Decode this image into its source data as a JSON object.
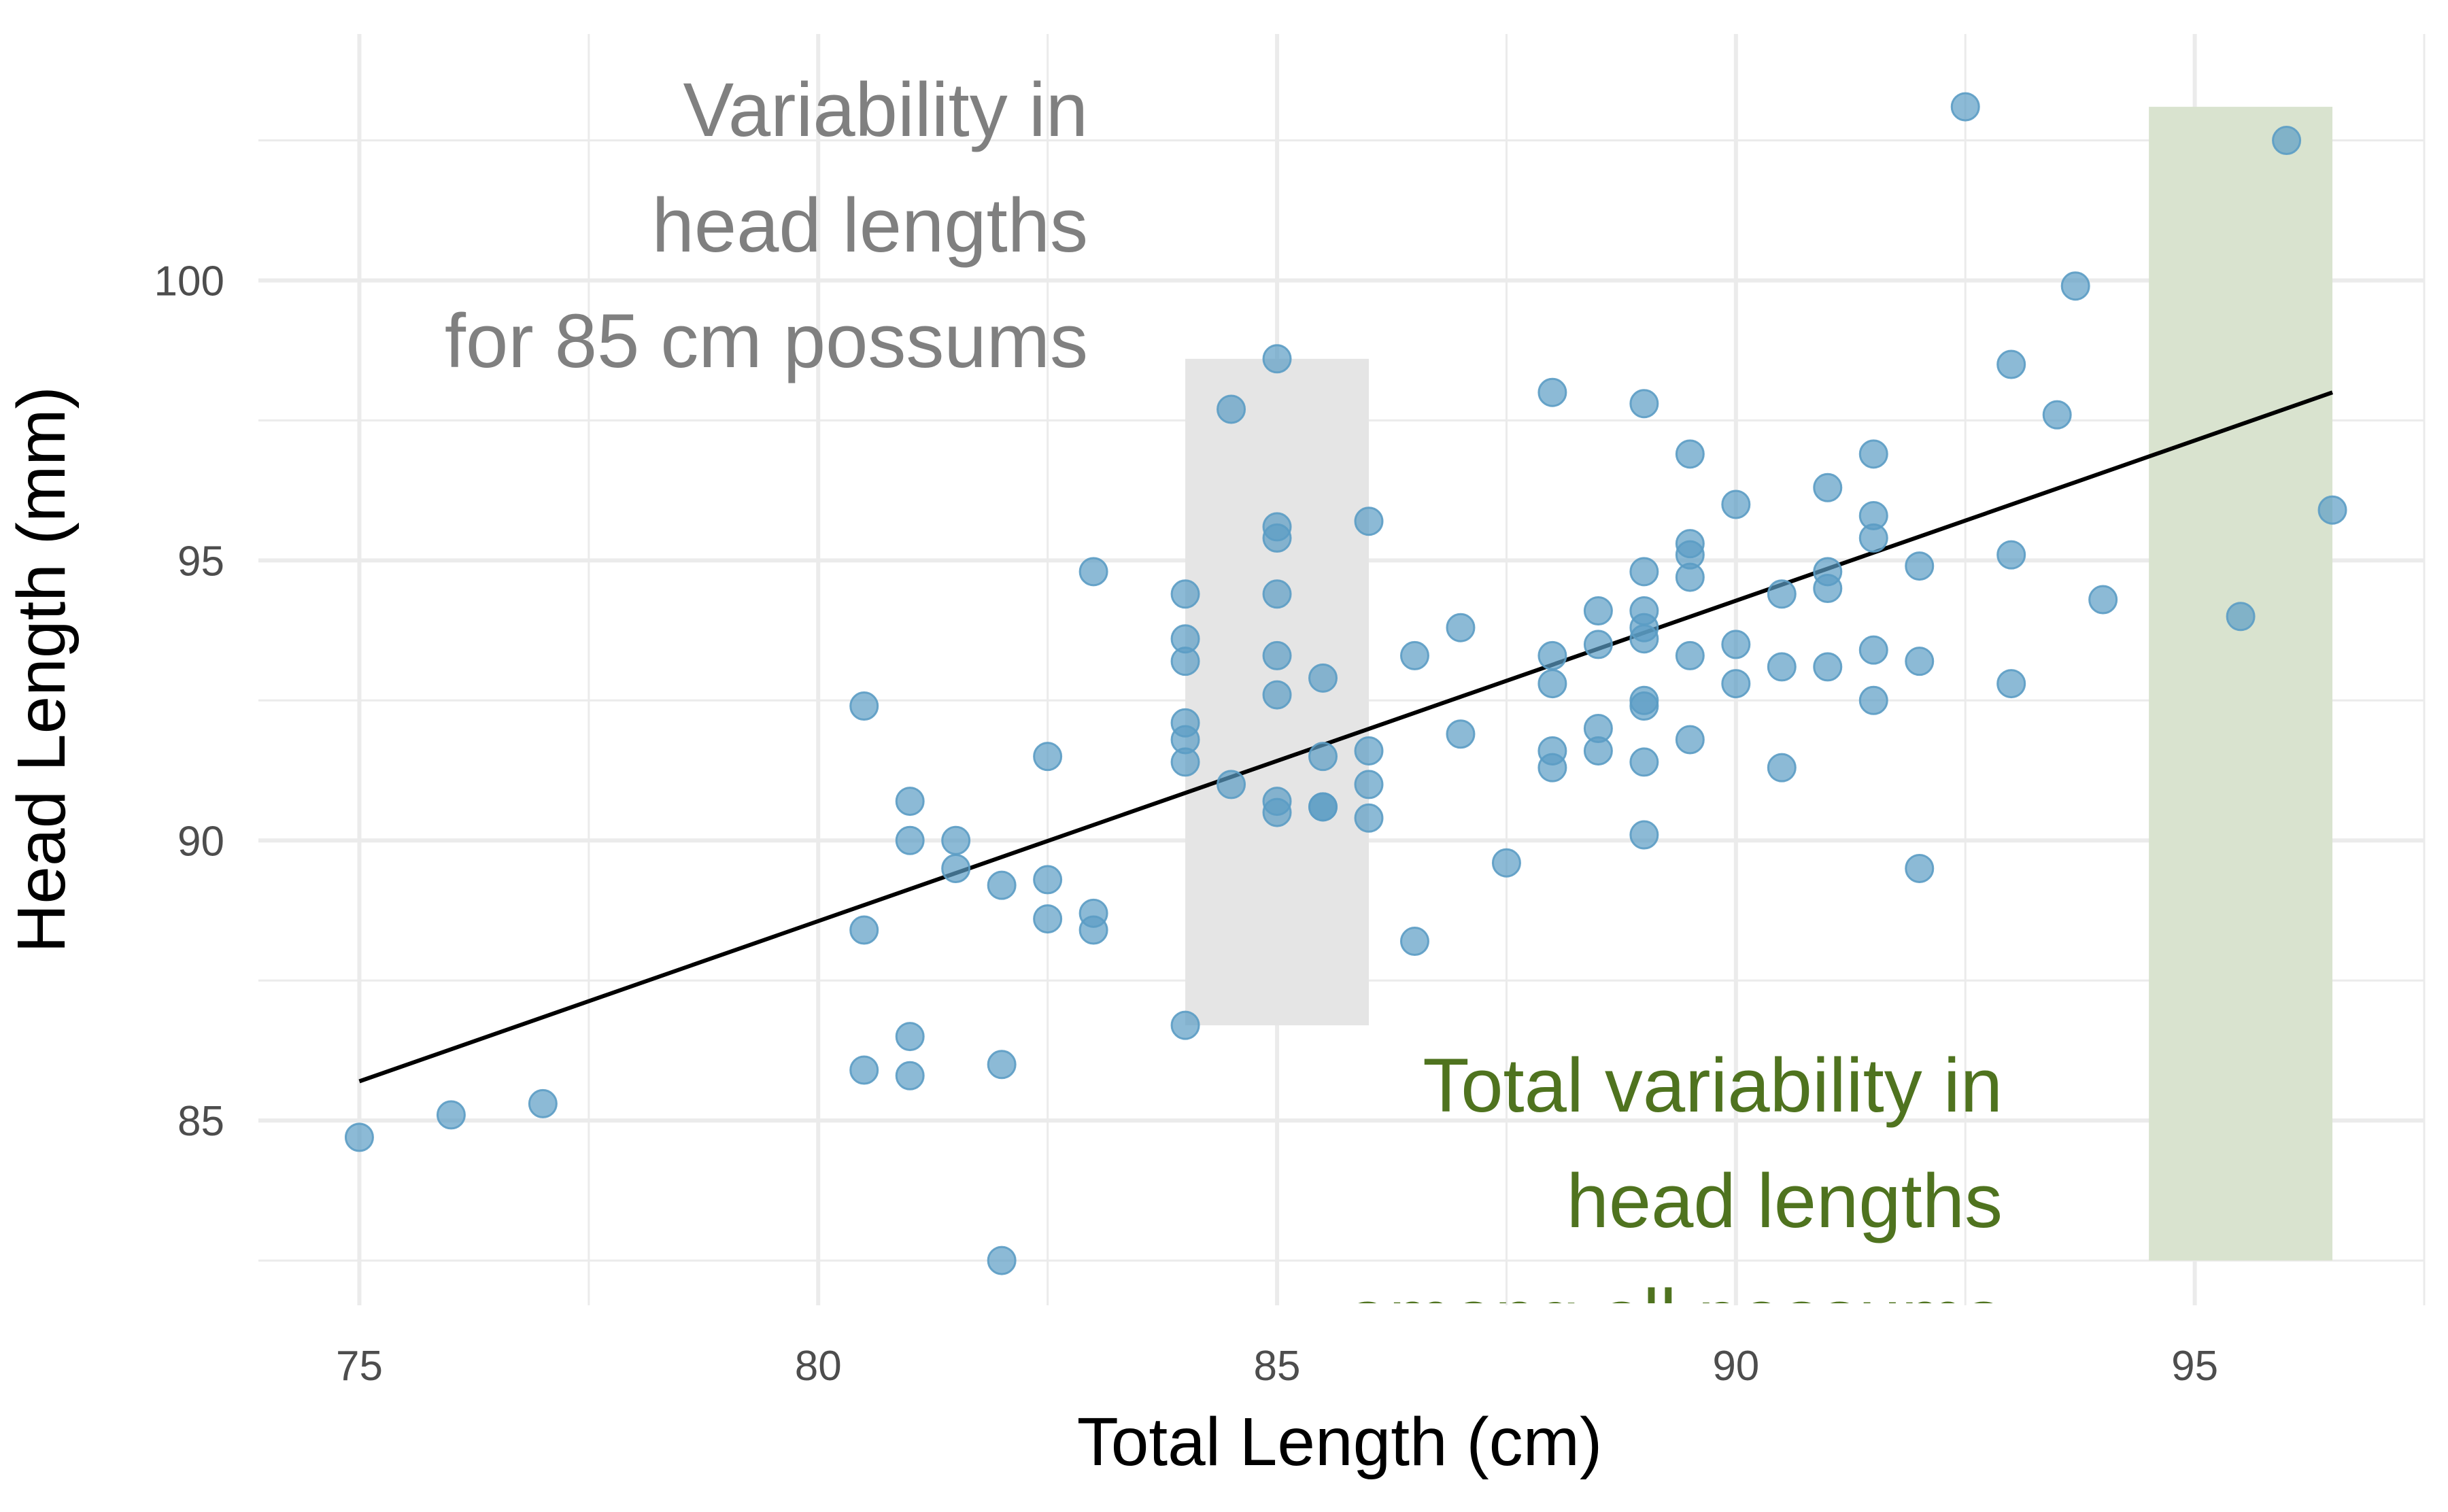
{
  "chart_data": {
    "type": "scatter",
    "xlabel": "Total Length (cm)",
    "ylabel": "Head Length (mm)",
    "xlim": [
      73.9,
      97.5
    ],
    "ylim": [
      81.7,
      104.4
    ],
    "x_ticks": [
      75,
      80,
      85,
      90,
      95
    ],
    "y_ticks": [
      85,
      90,
      95,
      100
    ],
    "x_minor": [
      77.5,
      82.5,
      87.5,
      92.5,
      97.5
    ],
    "y_minor": [
      82.5,
      87.5,
      92.5,
      97.5,
      102.5
    ],
    "grid": true,
    "point_color": "#5b9cc4",
    "line_color": "#000000",
    "regression_line": {
      "x": [
        75,
        96.5
      ],
      "y": [
        85.7,
        98.0
      ]
    },
    "points": [
      [
        75,
        84.7
      ],
      [
        76,
        85.1
      ],
      [
        77,
        85.3
      ],
      [
        80.5,
        92.4
      ],
      [
        80.5,
        88.4
      ],
      [
        80.5,
        85.9
      ],
      [
        81,
        90.7
      ],
      [
        81,
        90.0
      ],
      [
        81,
        86.5
      ],
      [
        81,
        85.8
      ],
      [
        81.5,
        90.0
      ],
      [
        81.5,
        89.5
      ],
      [
        82,
        89.2
      ],
      [
        82,
        86.0
      ],
      [
        82,
        82.5
      ],
      [
        82.5,
        91.5
      ],
      [
        82.5,
        89.3
      ],
      [
        82.5,
        88.6
      ],
      [
        83,
        94.8
      ],
      [
        83,
        88.7
      ],
      [
        83,
        88.4
      ],
      [
        84,
        94.4
      ],
      [
        84,
        93.6
      ],
      [
        84,
        93.2
      ],
      [
        84,
        92.1
      ],
      [
        84,
        91.8
      ],
      [
        84,
        91.4
      ],
      [
        84,
        86.7
      ],
      [
        84.5,
        97.7
      ],
      [
        84.5,
        91.0
      ],
      [
        85,
        98.6
      ],
      [
        85,
        95.6
      ],
      [
        85,
        95.4
      ],
      [
        85,
        94.4
      ],
      [
        85,
        93.3
      ],
      [
        85,
        92.6
      ],
      [
        85,
        90.7
      ],
      [
        85,
        90.5
      ],
      [
        85.5,
        92.9
      ],
      [
        85.5,
        91.5
      ],
      [
        85.5,
        90.6
      ],
      [
        85.5,
        90.6
      ],
      [
        86,
        95.7
      ],
      [
        86,
        91.6
      ],
      [
        86,
        91.0
      ],
      [
        86,
        90.4
      ],
      [
        86.5,
        93.3
      ],
      [
        86.5,
        88.2
      ],
      [
        87,
        93.8
      ],
      [
        87,
        91.9
      ],
      [
        87.5,
        89.6
      ],
      [
        88,
        98.0
      ],
      [
        88,
        93.3
      ],
      [
        88,
        92.8
      ],
      [
        88,
        91.6
      ],
      [
        88,
        91.3
      ],
      [
        88.5,
        94.1
      ],
      [
        88.5,
        93.5
      ],
      [
        88.5,
        92.0
      ],
      [
        88.5,
        91.6
      ],
      [
        89,
        97.8
      ],
      [
        89,
        94.8
      ],
      [
        89,
        94.1
      ],
      [
        89,
        93.8
      ],
      [
        89,
        93.6
      ],
      [
        89,
        92.5
      ],
      [
        89,
        92.4
      ],
      [
        89,
        91.4
      ],
      [
        89,
        90.1
      ],
      [
        89.5,
        96.9
      ],
      [
        89.5,
        95.3
      ],
      [
        89.5,
        95.1
      ],
      [
        89.5,
        94.7
      ],
      [
        89.5,
        93.3
      ],
      [
        89.5,
        91.8
      ],
      [
        90,
        96.0
      ],
      [
        90,
        93.5
      ],
      [
        90,
        92.8
      ],
      [
        90.5,
        94.4
      ],
      [
        90.5,
        93.1
      ],
      [
        90.5,
        91.3
      ],
      [
        91,
        96.3
      ],
      [
        91,
        94.8
      ],
      [
        91,
        94.5
      ],
      [
        91,
        93.1
      ],
      [
        91.5,
        96.9
      ],
      [
        91.5,
        95.8
      ],
      [
        91.5,
        95.4
      ],
      [
        91.5,
        93.4
      ],
      [
        91.5,
        92.5
      ],
      [
        92,
        94.9
      ],
      [
        92,
        93.2
      ],
      [
        92,
        89.5
      ],
      [
        92.5,
        103.1
      ],
      [
        93,
        98.5
      ],
      [
        93,
        95.1
      ],
      [
        93,
        92.8
      ],
      [
        93.5,
        97.6
      ],
      [
        93.7,
        99.9
      ],
      [
        94,
        94.3
      ],
      [
        95.5,
        94.0
      ],
      [
        96,
        102.5
      ],
      [
        96.5,
        95.9
      ]
    ],
    "highlight_85": {
      "x": [
        84,
        86
      ],
      "y": [
        86.7,
        98.6
      ],
      "color": "#e5e5e5"
    },
    "highlight_total": {
      "x": [
        94.5,
        96.5
      ],
      "y": [
        82.5,
        103.1
      ],
      "color": "#d9e3cf"
    },
    "annotation_85": {
      "lines": [
        "Variability in",
        "head lengths",
        "for 85 cm possums"
      ],
      "color": "#808080"
    },
    "annotation_total": {
      "lines": [
        "Total variability in",
        "head lengths",
        "among all possums"
      ],
      "color": "#4f731f"
    }
  }
}
